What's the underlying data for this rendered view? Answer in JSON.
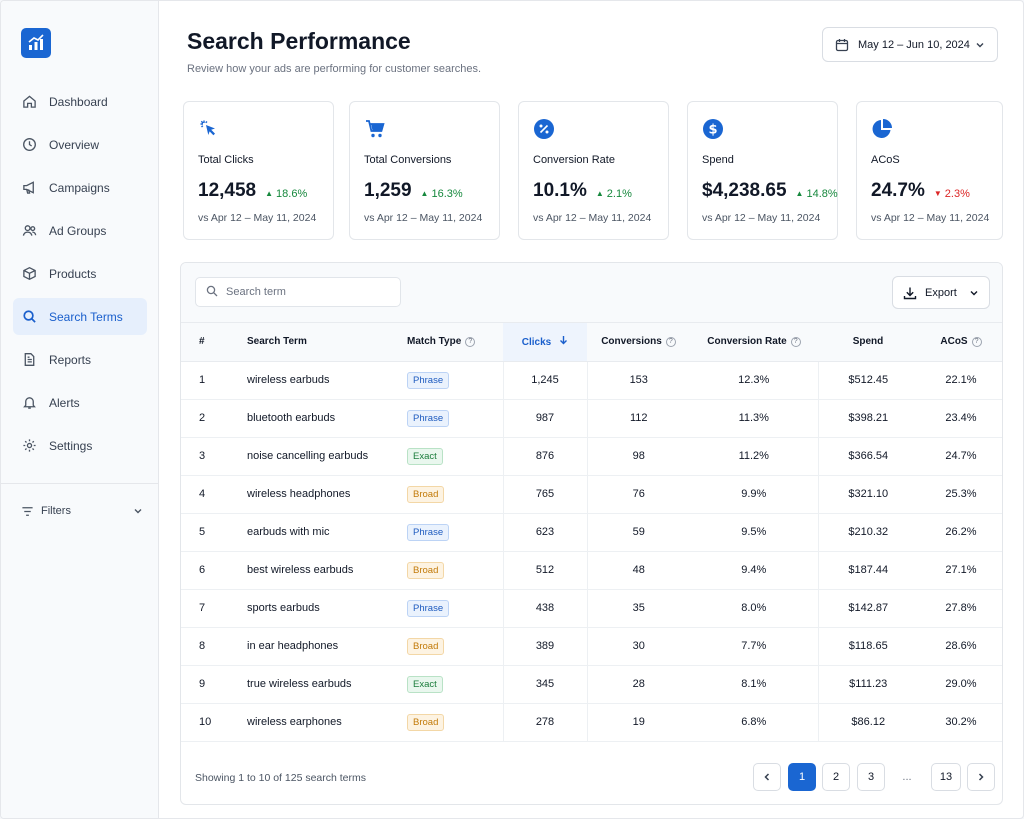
{
  "nav": {
    "items": [
      {
        "label": "Dashboard",
        "icon": "home-icon"
      },
      {
        "label": "Overview",
        "icon": "clock-icon"
      },
      {
        "label": "Campaigns",
        "icon": "megaphone-icon"
      },
      {
        "label": "Ad Groups",
        "icon": "users-icon"
      },
      {
        "label": "Products",
        "icon": "box-icon"
      },
      {
        "label": "Search Terms",
        "icon": "search-icon",
        "active": true
      },
      {
        "label": "Reports",
        "icon": "document-icon"
      },
      {
        "label": "Alerts",
        "icon": "bell-icon"
      },
      {
        "label": "Settings",
        "icon": "gear-icon"
      }
    ],
    "filters_label": "Filters"
  },
  "header": {
    "title": "Search Performance",
    "subtitle": "Review how your ads are performing for customer searches.",
    "date_range": "May 12 – Jun 10, 2024"
  },
  "kpis": [
    {
      "label": "Total Clicks",
      "value": "12,458",
      "delta": "18.6%",
      "direction": "up",
      "compare": "vs Apr 12 – May 11, 2024",
      "icon": "cursor-click-icon"
    },
    {
      "label": "Total Conversions",
      "value": "1,259",
      "delta": "16.3%",
      "direction": "up",
      "compare": "vs Apr 12 – May 11, 2024",
      "icon": "cart-icon"
    },
    {
      "label": "Conversion Rate",
      "value": "10.1%",
      "delta": "2.1%",
      "direction": "up",
      "compare": "vs Apr 12 – May 11, 2024",
      "icon": "percent-icon"
    },
    {
      "label": "Spend",
      "value": "$4,238.65",
      "delta": "14.8%",
      "direction": "up",
      "compare": "vs Apr 12 – May 11, 2024",
      "icon": "dollar-icon"
    },
    {
      "label": "ACoS",
      "value": "24.7%",
      "delta": "2.3%",
      "direction": "down",
      "compare": "vs Apr 12 – May 11, 2024",
      "icon": "pie-chart-icon"
    }
  ],
  "table": {
    "search_placeholder": "Search term",
    "export_label": "Export",
    "columns": [
      "#",
      "Search Term",
      "Match Type",
      "Clicks",
      "Conversions",
      "Conversion Rate",
      "Spend",
      "ACoS"
    ],
    "rows": [
      {
        "num": "1",
        "term": "wireless earbuds",
        "match": "Phrase",
        "clicks": "1,245",
        "conversions": "153",
        "rate": "12.3%",
        "spend": "$512.45",
        "acos": "22.1%"
      },
      {
        "num": "2",
        "term": "bluetooth earbuds",
        "match": "Phrase",
        "clicks": "987",
        "conversions": "112",
        "rate": "11.3%",
        "spend": "$398.21",
        "acos": "23.4%"
      },
      {
        "num": "3",
        "term": "noise cancelling earbuds",
        "match": "Exact",
        "clicks": "876",
        "conversions": "98",
        "rate": "11.2%",
        "spend": "$366.54",
        "acos": "24.7%"
      },
      {
        "num": "4",
        "term": "wireless headphones",
        "match": "Broad",
        "clicks": "765",
        "conversions": "76",
        "rate": "9.9%",
        "spend": "$321.10",
        "acos": "25.3%"
      },
      {
        "num": "5",
        "term": "earbuds with mic",
        "match": "Phrase",
        "clicks": "623",
        "conversions": "59",
        "rate": "9.5%",
        "spend": "$210.32",
        "acos": "26.2%"
      },
      {
        "num": "6",
        "term": "best wireless earbuds",
        "match": "Broad",
        "clicks": "512",
        "conversions": "48",
        "rate": "9.4%",
        "spend": "$187.44",
        "acos": "27.1%"
      },
      {
        "num": "7",
        "term": "sports earbuds",
        "match": "Phrase",
        "clicks": "438",
        "conversions": "35",
        "rate": "8.0%",
        "spend": "$142.87",
        "acos": "27.8%"
      },
      {
        "num": "8",
        "term": "in ear headphones",
        "match": "Broad",
        "clicks": "389",
        "conversions": "30",
        "rate": "7.7%",
        "spend": "$118.65",
        "acos": "28.6%"
      },
      {
        "num": "9",
        "term": "true wireless earbuds",
        "match": "Exact",
        "clicks": "345",
        "conversions": "28",
        "rate": "8.1%",
        "spend": "$111.23",
        "acos": "29.0%"
      },
      {
        "num": "10",
        "term": "wireless earphones",
        "match": "Broad",
        "clicks": "278",
        "conversions": "19",
        "rate": "6.8%",
        "spend": "$86.12",
        "acos": "30.2%"
      }
    ]
  },
  "pagination": {
    "showing": "Showing 1 to 10 of 125 search terms",
    "pages": [
      "1",
      "2",
      "3",
      "...",
      "13"
    ],
    "current": "1"
  },
  "colors": {
    "primary": "#1a66d2",
    "positive": "#16883d",
    "negative": "#dc2626",
    "phrase": "#1e5bbf",
    "exact": "#1b7d3c",
    "broad": "#c27a09"
  }
}
